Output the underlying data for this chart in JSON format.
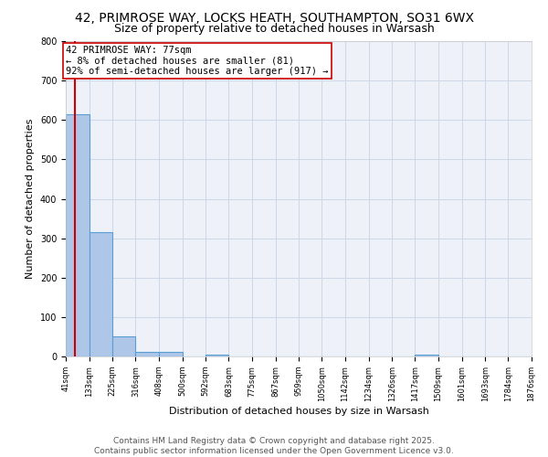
{
  "title": "42, PRIMROSE WAY, LOCKS HEATH, SOUTHAMPTON, SO31 6WX",
  "subtitle": "Size of property relative to detached houses in Warsash",
  "xlabel": "Distribution of detached houses by size in Warsash",
  "ylabel": "Number of detached properties",
  "bin_edges": [
    41,
    133,
    225,
    316,
    408,
    500,
    592,
    683,
    775,
    867,
    959,
    1050,
    1142,
    1234,
    1326,
    1417,
    1509,
    1601,
    1693,
    1784,
    1876
  ],
  "bar_heights": [
    615,
    315,
    50,
    12,
    12,
    0,
    5,
    0,
    0,
    0,
    0,
    0,
    0,
    0,
    0,
    5,
    0,
    0,
    0,
    0
  ],
  "bar_color": "#aec6e8",
  "bar_edge_color": "#5a9fd4",
  "property_size": 77,
  "annotation_text": "42 PRIMROSE WAY: 77sqm\n← 8% of detached houses are smaller (81)\n92% of semi-detached houses are larger (917) →",
  "annotation_box_color": "#ffffff",
  "annotation_box_edge_color": "#cc0000",
  "red_line_color": "#cc0000",
  "ylim": [
    0,
    800
  ],
  "yticks": [
    0,
    100,
    200,
    300,
    400,
    500,
    600,
    700,
    800
  ],
  "grid_color": "#d0d8e8",
  "background_color": "#eef2f8",
  "footer_text": "Contains HM Land Registry data © Crown copyright and database right 2025.\nContains public sector information licensed under the Open Government Licence v3.0.",
  "title_fontsize": 10,
  "subtitle_fontsize": 9,
  "axis_label_fontsize": 8,
  "tick_fontsize": 7,
  "annotation_fontsize": 7.5,
  "footer_fontsize": 6.5
}
